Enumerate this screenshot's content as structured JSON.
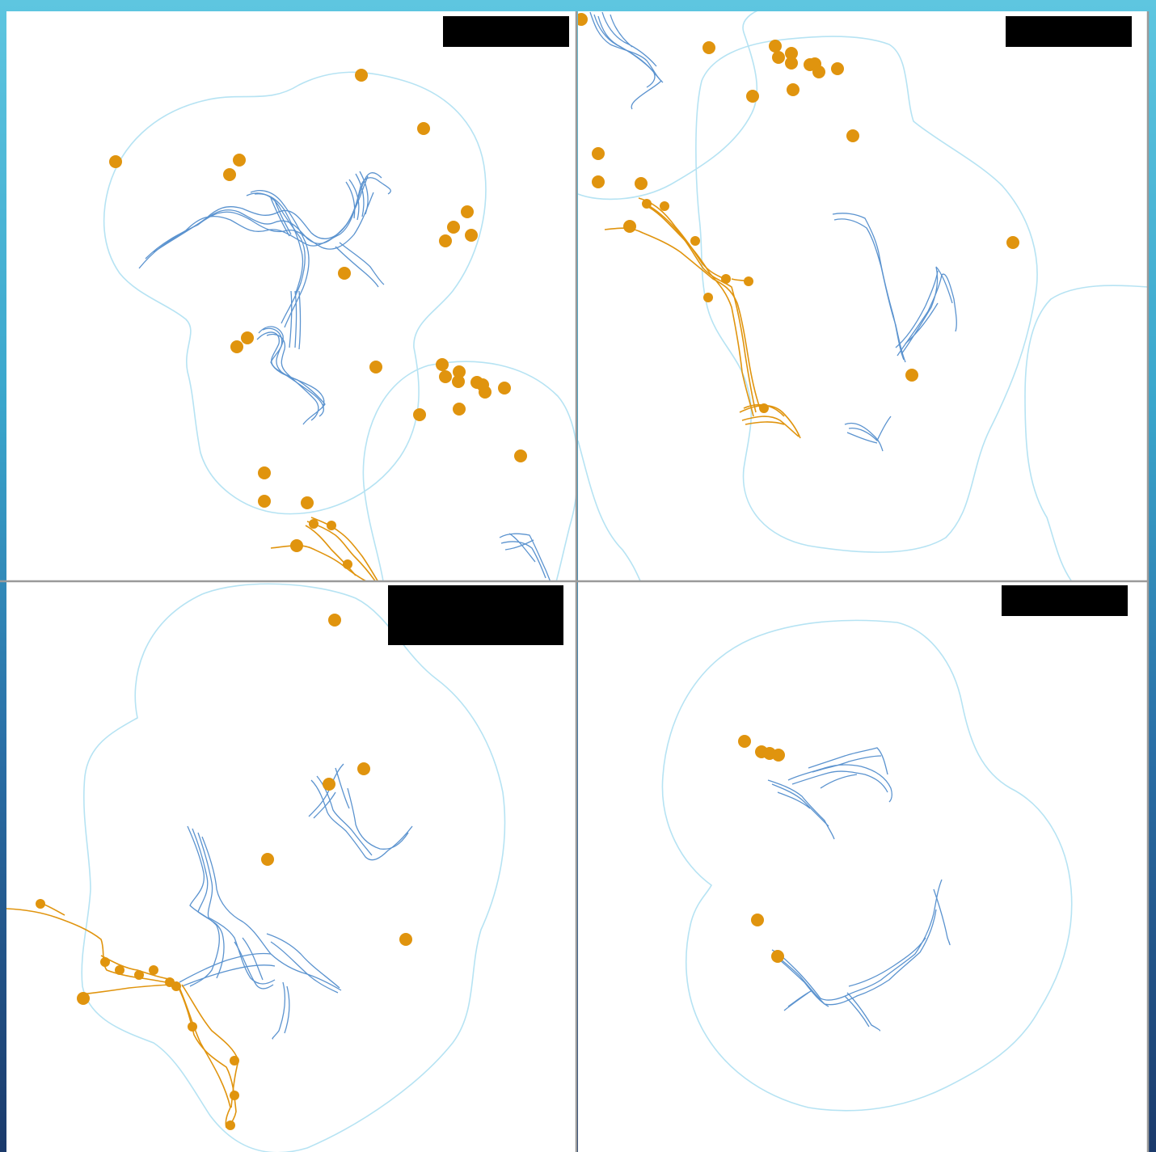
{
  "colors": {
    "blue_track": "#5b93cf",
    "orange_track": "#e0940e",
    "boundary": "#b6e3f3",
    "divider": "#9a9a9a",
    "redaction": "#000000",
    "panel_bg": "#ffffff"
  },
  "legend": "none",
  "panels": [
    {
      "id": "top-left",
      "redaction_label": ""
    },
    {
      "id": "top-right",
      "redaction_label": ""
    },
    {
      "id": "bottom-left",
      "redaction_label": ""
    },
    {
      "id": "bottom-right",
      "redaction_label": ""
    }
  ]
}
